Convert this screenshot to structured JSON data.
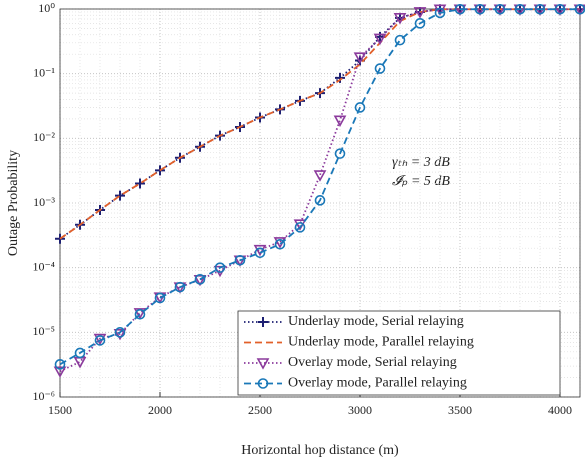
{
  "chart_data": {
    "type": "line",
    "x_label": "Horizontal hop distance (m)",
    "y_label": "Outage Probability",
    "annotations": [
      "γₜₕ = 3 dB",
      "𝓘ₚ = 5 dB"
    ],
    "x": [
      1500,
      1600,
      1700,
      1800,
      1900,
      2000,
      2100,
      2200,
      2300,
      2400,
      2500,
      2600,
      2700,
      2800,
      2900,
      3000,
      3100,
      3200,
      3300,
      3400,
      3500,
      3600,
      3700,
      3800,
      3900,
      4000,
      4100
    ],
    "series": [
      {
        "name": "Underlay mode, Serial relaying",
        "color": "#1c1f72",
        "dash": "dotted",
        "marker": "plus",
        "values": [
          0.00028,
          0.00046,
          0.00078,
          0.0013,
          0.002,
          0.0032,
          0.005,
          0.0074,
          0.011,
          0.015,
          0.021,
          0.028,
          0.038,
          0.05,
          0.086,
          0.16,
          0.37,
          0.73,
          0.9,
          0.99,
          0.99,
          0.99,
          0.99,
          0.99,
          0.99,
          0.99,
          0.99
        ]
      },
      {
        "name": "Underlay mode, Parallel relaying",
        "color": "#e2602a",
        "dash": "dashed",
        "marker": "none",
        "values": [
          0.00028,
          0.00046,
          0.00078,
          0.0013,
          0.002,
          0.0032,
          0.005,
          0.0074,
          0.011,
          0.015,
          0.021,
          0.028,
          0.038,
          0.05,
          0.08,
          0.14,
          0.3,
          0.65,
          0.9,
          0.99,
          0.99,
          0.99,
          0.99,
          0.99,
          0.99,
          0.99,
          0.99
        ]
      },
      {
        "name": "Overlay mode, Serial relaying",
        "color": "#8b3a9c",
        "dash": "dotted",
        "marker": "triangle-down",
        "values": [
          2.5e-06,
          3.5e-06,
          8e-06,
          9.5e-06,
          2e-05,
          3.5e-05,
          5e-05,
          6.5e-05,
          9e-05,
          0.00013,
          0.00019,
          0.00025,
          0.00047,
          0.0027,
          0.019,
          0.18,
          0.35,
          0.73,
          0.9,
          0.99,
          0.99,
          0.99,
          0.99,
          0.99,
          0.99,
          0.99,
          0.99
        ]
      },
      {
        "name": "Overlay mode, Parallel relaying",
        "color": "#1a78b8",
        "dash": "dashed",
        "marker": "circle",
        "values": [
          3.2e-06,
          4.8e-06,
          7.5e-06,
          1e-05,
          1.9e-05,
          3.4e-05,
          5e-05,
          6.6e-05,
          0.0001,
          0.00013,
          0.00017,
          0.00023,
          0.00042,
          0.0011,
          0.0058,
          0.03,
          0.12,
          0.33,
          0.6,
          0.87,
          0.99,
          0.99,
          0.99,
          0.99,
          0.99,
          0.99,
          0.99
        ]
      }
    ],
    "xlim": [
      1500,
      4100
    ],
    "xticks": [
      1500,
      2000,
      2500,
      3000,
      3500,
      4000
    ],
    "ylim": [
      1e-06,
      1
    ],
    "log_y": true,
    "yticks": [
      {
        "value": 1e-06,
        "label": "10⁻⁶"
      },
      {
        "value": 1e-05,
        "label": "10⁻⁵"
      },
      {
        "value": 0.0001,
        "label": "10⁻⁴"
      },
      {
        "value": 0.001,
        "label": "10⁻³"
      },
      {
        "value": 0.01,
        "label": "10⁻²"
      },
      {
        "value": 0.1,
        "label": "10⁻¹"
      },
      {
        "value": 1,
        "label": "10⁰"
      }
    ],
    "grid": true,
    "legend": "lower right"
  }
}
